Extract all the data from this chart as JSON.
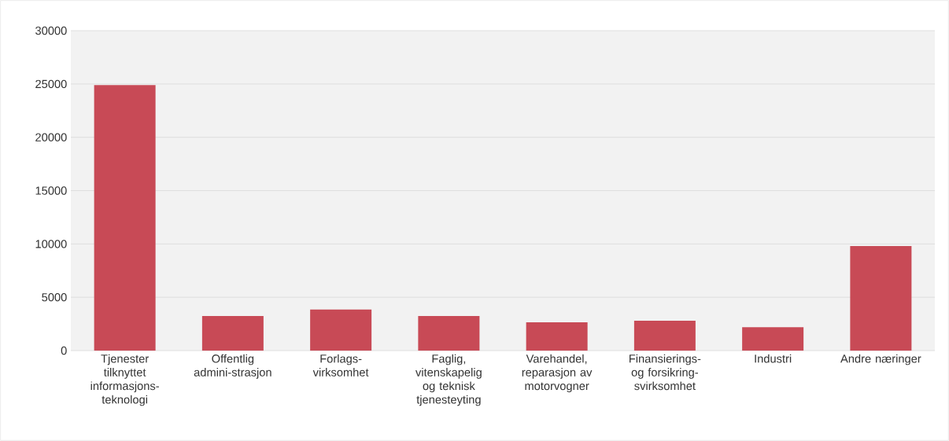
{
  "chart_data": {
    "type": "bar",
    "categories": [
      "Tjenester tilknyttet informasjons-teknologi",
      "Offentlig admini-strasjon",
      "Forlags-virksomhet",
      "Faglig, vitenskapelig og teknisk tjenesteyting",
      "Varehandel, reparasjon av motorvogner",
      "Finansierings- og forsikring-svirksomhet",
      "Industri",
      "Andre næringer"
    ],
    "values": [
      24900,
      3250,
      3850,
      3250,
      2650,
      2800,
      2200,
      9800
    ],
    "color": "#c84a56",
    "ylim": [
      0,
      30000
    ],
    "yticks": [
      0,
      5000,
      10000,
      15000,
      20000,
      25000,
      30000
    ],
    "grid": "y"
  }
}
